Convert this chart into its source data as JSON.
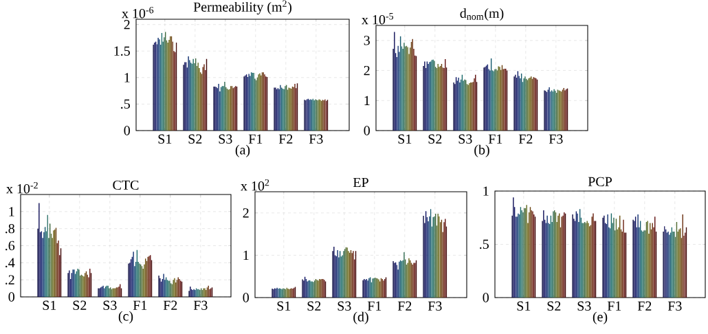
{
  "chart_data": [
    {
      "type": "bar",
      "title": "Permeability (m$^{2}$)",
      "xlabel": "(a)",
      "annotations": [
        "x 10$^{-6}$"
      ],
      "categories": [
        "S1",
        "S2",
        "S3",
        "F1",
        "F2",
        "F3"
      ],
      "ylim": [
        0,
        2.1
      ],
      "yticks": [
        0,
        {
          "value": 0.5,
          "label": ".5"
        },
        1,
        1.5,
        2
      ],
      "grid": true,
      "series": [
        {
          "color": "#0a0a40",
          "values": [
            1.62,
            1.24,
            0.83,
            1.02,
            0.81,
            0.58
          ]
        },
        {
          "color": "#0c0c55",
          "values": [
            1.66,
            1.29,
            0.83,
            1.04,
            0.81,
            0.57
          ]
        },
        {
          "color": "#0e1262",
          "values": [
            1.68,
            1.29,
            0.82,
            1.06,
            0.78,
            0.59
          ]
        },
        {
          "color": "#10206a",
          "values": [
            1.63,
            1.19,
            0.8,
            1.01,
            0.8,
            0.6
          ]
        },
        {
          "color": "#103070",
          "values": [
            1.75,
            1.4,
            0.88,
            1.07,
            0.78,
            0.58
          ]
        },
        {
          "color": "#104272",
          "values": [
            1.72,
            1.33,
            0.74,
            1.03,
            0.86,
            0.59
          ]
        },
        {
          "color": "#155a6e",
          "values": [
            1.62,
            1.28,
            0.82,
            1.1,
            0.81,
            0.58
          ]
        },
        {
          "color": "#1a6a6a",
          "values": [
            1.84,
            1.26,
            0.84,
            1.09,
            0.79,
            0.6
          ]
        },
        {
          "color": "#206a60",
          "values": [
            1.68,
            1.35,
            0.84,
            1.09,
            0.78,
            0.57
          ]
        },
        {
          "color": "#306a50",
          "values": [
            1.76,
            1.27,
            0.92,
            0.98,
            0.84,
            0.59
          ]
        },
        {
          "color": "#406a40",
          "values": [
            1.86,
            1.36,
            0.82,
            0.95,
            0.86,
            0.58
          ]
        },
        {
          "color": "#506a30",
          "values": [
            1.7,
            1.22,
            0.79,
            1.0,
            0.77,
            0.57
          ]
        },
        {
          "color": "#606a20",
          "values": [
            1.66,
            1.28,
            0.77,
            1.06,
            0.81,
            0.59
          ]
        },
        {
          "color": "#6a6010",
          "values": [
            1.71,
            1.18,
            0.78,
            1.08,
            0.8,
            0.58
          ]
        },
        {
          "color": "#6a5010",
          "values": [
            1.78,
            1.1,
            0.84,
            1.04,
            0.79,
            0.56
          ]
        },
        {
          "color": "#6a4010",
          "values": [
            1.78,
            1.07,
            0.84,
            1.1,
            0.83,
            0.58
          ]
        },
        {
          "color": "#6a3010",
          "values": [
            1.68,
            1.2,
            0.8,
            1.1,
            0.82,
            0.57
          ]
        },
        {
          "color": "#6a2010",
          "values": [
            1.5,
            1.25,
            0.82,
            1.06,
            0.88,
            0.59
          ]
        },
        {
          "color": "#601010",
          "values": [
            1.48,
            1.14,
            0.84,
            1.02,
            0.8,
            0.56
          ]
        },
        {
          "color": "#400808",
          "values": [
            1.66,
            1.35,
            0.83,
            1.01,
            0.89,
            0.58
          ]
        }
      ]
    },
    {
      "type": "bar",
      "title": "d$_{nom}$(m)",
      "xlabel": "(b)",
      "annotations": [
        "x 10$^{-5}$"
      ],
      "categories": [
        "S1",
        "S2",
        "S3",
        "F1",
        "F2",
        "F3"
      ],
      "ylim": [
        0,
        3.5
      ],
      "yticks": [
        0,
        1,
        2,
        3
      ],
      "grid": true,
      "series": [
        {
          "color": "#0a0a40",
          "values": [
            2.72,
            2.15,
            1.6,
            2.1,
            1.8,
            1.34
          ]
        },
        {
          "color": "#0c0c55",
          "values": [
            3.28,
            2.3,
            1.55,
            2.12,
            1.86,
            1.32
          ]
        },
        {
          "color": "#0e1262",
          "values": [
            2.58,
            2.08,
            1.78,
            2.16,
            1.76,
            1.28
          ]
        },
        {
          "color": "#10206a",
          "values": [
            2.45,
            2.3,
            1.66,
            2.2,
            1.98,
            1.36
          ]
        },
        {
          "color": "#103070",
          "values": [
            2.82,
            2.22,
            1.76,
            2.05,
            1.82,
            1.44
          ]
        },
        {
          "color": "#104272",
          "values": [
            2.62,
            2.28,
            1.6,
            2.0,
            1.74,
            1.3
          ]
        },
        {
          "color": "#155a6e",
          "values": [
            3.14,
            2.3,
            1.7,
            2.4,
            1.9,
            1.34
          ]
        },
        {
          "color": "#1a6a6a",
          "values": [
            2.8,
            2.35,
            1.86,
            2.0,
            1.62,
            1.3
          ]
        },
        {
          "color": "#206a60",
          "values": [
            2.72,
            2.36,
            1.66,
            1.98,
            1.74,
            1.38
          ]
        },
        {
          "color": "#306a50",
          "values": [
            2.92,
            2.32,
            1.7,
            2.04,
            1.8,
            1.32
          ]
        },
        {
          "color": "#406a40",
          "values": [
            2.8,
            2.12,
            1.68,
            2.05,
            1.72,
            1.26
          ]
        },
        {
          "color": "#506a30",
          "values": [
            2.82,
            2.08,
            1.55,
            2.0,
            1.68,
            1.36
          ]
        },
        {
          "color": "#606a20",
          "values": [
            2.78,
            2.22,
            1.52,
            2.14,
            1.74,
            1.34
          ]
        },
        {
          "color": "#6a6010",
          "values": [
            2.55,
            2.12,
            1.58,
            2.12,
            1.76,
            1.32
          ]
        },
        {
          "color": "#6a5010",
          "values": [
            2.76,
            2.15,
            1.6,
            2.02,
            1.8,
            1.3
          ]
        },
        {
          "color": "#6a4010",
          "values": [
            2.95,
            2.22,
            1.6,
            2.18,
            1.72,
            1.36
          ]
        },
        {
          "color": "#6a3010",
          "values": [
            3.05,
            2.1,
            1.62,
            2.05,
            1.78,
            1.42
          ]
        },
        {
          "color": "#6a2010",
          "values": [
            2.72,
            2.08,
            1.74,
            2.06,
            1.76,
            1.34
          ]
        },
        {
          "color": "#601010",
          "values": [
            2.5,
            2.38,
            1.86,
            2.06,
            1.74,
            1.38
          ]
        },
        {
          "color": "#400808",
          "values": [
            2.48,
            2.1,
            1.62,
            2.0,
            1.7,
            1.4
          ]
        }
      ]
    },
    {
      "type": "bar",
      "title": "CTC",
      "xlabel": "(c)",
      "annotations": [
        "x 10$^{-2}$"
      ],
      "categories": [
        "S1",
        "S2",
        "S3",
        "F1",
        "F2",
        "F3"
      ],
      "ylim": [
        0,
        1.2
      ],
      "yticks": [
        0,
        {
          "value": 0.2,
          "label": ".2"
        },
        {
          "value": 0.4,
          "label": ".4"
        },
        {
          "value": 0.6,
          "label": ".6"
        },
        {
          "value": 0.8,
          "label": ".8"
        },
        1
      ],
      "grid": true,
      "series": [
        {
          "color": "#0a0a40",
          "values": [
            0.8,
            0.28,
            0.1,
            0.39,
            0.25,
            0.07
          ]
        },
        {
          "color": "#0c0c55",
          "values": [
            1.1,
            0.31,
            0.1,
            0.4,
            0.22,
            0.12
          ]
        },
        {
          "color": "#0e1262",
          "values": [
            0.76,
            0.21,
            0.11,
            0.44,
            0.18,
            0.09
          ]
        },
        {
          "color": "#10206a",
          "values": [
            0.77,
            0.28,
            0.12,
            0.47,
            0.21,
            0.08
          ]
        },
        {
          "color": "#103070",
          "values": [
            0.69,
            0.32,
            0.13,
            0.53,
            0.27,
            0.09
          ]
        },
        {
          "color": "#104272",
          "values": [
            0.76,
            0.32,
            0.1,
            0.36,
            0.2,
            0.08
          ]
        },
        {
          "color": "#155a6e",
          "values": [
            0.82,
            0.27,
            0.12,
            0.41,
            0.23,
            0.1
          ]
        },
        {
          "color": "#1a6a6a",
          "values": [
            0.77,
            0.3,
            0.13,
            0.55,
            0.2,
            0.09
          ]
        },
        {
          "color": "#206a60",
          "values": [
            0.96,
            0.33,
            0.13,
            0.41,
            0.19,
            0.09
          ]
        },
        {
          "color": "#306a50",
          "values": [
            0.69,
            0.32,
            0.1,
            0.39,
            0.19,
            0.08
          ]
        },
        {
          "color": "#406a40",
          "values": [
            0.86,
            0.25,
            0.11,
            0.38,
            0.16,
            0.1
          ]
        },
        {
          "color": "#506a30",
          "values": [
            0.74,
            0.26,
            0.09,
            0.36,
            0.15,
            0.08
          ]
        },
        {
          "color": "#606a20",
          "values": [
            0.69,
            0.25,
            0.1,
            0.33,
            0.2,
            0.1
          ]
        },
        {
          "color": "#6a6010",
          "values": [
            0.78,
            0.24,
            0.1,
            0.38,
            0.22,
            0.1
          ]
        },
        {
          "color": "#6a5010",
          "values": [
            0.79,
            0.28,
            0.1,
            0.45,
            0.17,
            0.08
          ]
        },
        {
          "color": "#6a4010",
          "values": [
            0.81,
            0.3,
            0.11,
            0.42,
            0.2,
            0.11
          ]
        },
        {
          "color": "#6a3010",
          "values": [
            0.63,
            0.26,
            0.11,
            0.47,
            0.23,
            0.13
          ]
        },
        {
          "color": "#6a2010",
          "values": [
            0.66,
            0.23,
            0.12,
            0.48,
            0.21,
            0.09
          ]
        },
        {
          "color": "#601010",
          "values": [
            0.49,
            0.33,
            0.15,
            0.49,
            0.19,
            0.1
          ]
        },
        {
          "color": "#400808",
          "values": [
            0.57,
            0.28,
            0.1,
            0.43,
            0.18,
            0.11
          ]
        }
      ]
    },
    {
      "type": "bar",
      "title": "EP",
      "xlabel": "(d)",
      "annotations": [
        "x 10$^{2}$"
      ],
      "categories": [
        "S1",
        "S2",
        "S3",
        "F1",
        "F2",
        "F3"
      ],
      "ylim": [
        0,
        2.5
      ],
      "yticks": [
        0,
        1,
        2
      ],
      "grid": true,
      "series": [
        {
          "color": "#0a0a40",
          "values": [
            0.21,
            0.43,
            1.1,
            0.41,
            0.86,
            1.93
          ]
        },
        {
          "color": "#0c0c55",
          "values": [
            0.2,
            0.4,
            1.2,
            0.44,
            0.82,
            1.76
          ]
        },
        {
          "color": "#0e1262",
          "values": [
            0.22,
            0.49,
            1.0,
            0.42,
            0.83,
            2.04
          ]
        },
        {
          "color": "#10206a",
          "values": [
            0.21,
            0.44,
            0.98,
            0.44,
            0.77,
            1.9
          ]
        },
        {
          "color": "#103070",
          "values": [
            0.23,
            0.38,
            1.12,
            0.4,
            0.66,
            1.8
          ]
        },
        {
          "color": "#104272",
          "values": [
            0.21,
            0.4,
            0.95,
            0.46,
            0.85,
            1.92
          ]
        },
        {
          "color": "#155a6e",
          "values": [
            0.22,
            0.41,
            1.1,
            0.48,
            0.88,
            2.09
          ]
        },
        {
          "color": "#1a6a6a",
          "values": [
            0.21,
            0.38,
            0.97,
            0.36,
            0.86,
            1.68
          ]
        },
        {
          "color": "#206a60",
          "values": [
            0.2,
            0.38,
            1.0,
            0.45,
            0.88,
            1.9
          ]
        },
        {
          "color": "#306a50",
          "values": [
            0.22,
            0.37,
            1.1,
            0.46,
            1.07,
            1.92
          ]
        },
        {
          "color": "#406a40",
          "values": [
            0.21,
            0.4,
            1.15,
            0.47,
            0.9,
            1.98
          ]
        },
        {
          "color": "#506a30",
          "values": [
            0.2,
            0.44,
            1.19,
            0.46,
            0.78,
            1.7
          ]
        },
        {
          "color": "#606a20",
          "values": [
            0.23,
            0.42,
            1.18,
            0.45,
            0.82,
            1.98
          ]
        },
        {
          "color": "#6a6010",
          "values": [
            0.21,
            0.4,
            1.1,
            0.43,
            0.93,
            1.92
          ]
        },
        {
          "color": "#6a5010",
          "values": [
            0.2,
            0.44,
            1.06,
            0.38,
            0.88,
            1.78
          ]
        },
        {
          "color": "#6a4010",
          "values": [
            0.21,
            0.43,
            1.12,
            0.46,
            0.82,
            1.84
          ]
        },
        {
          "color": "#6a3010",
          "values": [
            0.22,
            0.44,
            1.05,
            0.44,
            0.78,
            1.55
          ]
        },
        {
          "color": "#6a2010",
          "values": [
            0.21,
            0.44,
            1.1,
            0.4,
            0.82,
            1.78
          ]
        },
        {
          "color": "#601010",
          "values": [
            0.23,
            0.42,
            0.9,
            0.44,
            0.82,
            1.86
          ]
        },
        {
          "color": "#400808",
          "values": [
            0.25,
            0.38,
            1.1,
            0.48,
            0.88,
            1.68
          ]
        }
      ]
    },
    {
      "type": "bar",
      "title": "PCP",
      "xlabel": "(e)",
      "categories": [
        "S1",
        "S2",
        "S3",
        "F1",
        "F2",
        "F3"
      ],
      "ylim": [
        0,
        1
      ],
      "yticks": [
        0,
        {
          "value": 0.5,
          "label": ".5"
        },
        1
      ],
      "grid": true,
      "series": [
        {
          "color": "#0a0a40",
          "values": [
            0.77,
            0.72,
            0.78,
            0.75,
            0.73,
            0.62
          ]
        },
        {
          "color": "#0c0c55",
          "values": [
            0.94,
            0.82,
            0.74,
            0.77,
            0.72,
            0.67
          ]
        },
        {
          "color": "#0e1262",
          "values": [
            0.85,
            0.73,
            0.72,
            0.7,
            0.76,
            0.64
          ]
        },
        {
          "color": "#10206a",
          "values": [
            0.76,
            0.7,
            0.81,
            0.69,
            0.66,
            0.61
          ]
        },
        {
          "color": "#103070",
          "values": [
            0.76,
            0.77,
            0.79,
            0.78,
            0.78,
            0.62
          ]
        },
        {
          "color": "#104272",
          "values": [
            0.79,
            0.7,
            0.71,
            0.66,
            0.66,
            0.59
          ]
        },
        {
          "color": "#155a6e",
          "values": [
            0.78,
            0.69,
            0.83,
            0.65,
            0.72,
            0.61
          ]
        },
        {
          "color": "#1a6a6a",
          "values": [
            0.85,
            0.77,
            0.75,
            0.79,
            0.63,
            0.66
          ]
        },
        {
          "color": "#206a60",
          "values": [
            0.82,
            0.71,
            0.7,
            0.7,
            0.62,
            0.62
          ]
        },
        {
          "color": "#306a50",
          "values": [
            0.8,
            0.81,
            0.7,
            0.75,
            0.63,
            0.62
          ]
        },
        {
          "color": "#406a40",
          "values": [
            0.84,
            0.82,
            0.71,
            0.63,
            0.63,
            0.57
          ]
        },
        {
          "color": "#506a30",
          "values": [
            0.84,
            0.8,
            0.7,
            0.74,
            0.71,
            0.71
          ]
        },
        {
          "color": "#606a20",
          "values": [
            0.87,
            0.71,
            0.72,
            0.64,
            0.72,
            0.62
          ]
        },
        {
          "color": "#6a6010",
          "values": [
            0.7,
            0.77,
            0.7,
            0.66,
            0.6,
            0.64
          ]
        },
        {
          "color": "#6a5010",
          "values": [
            0.8,
            0.79,
            0.67,
            0.77,
            0.7,
            0.65
          ]
        },
        {
          "color": "#6a4010",
          "values": [
            0.85,
            0.66,
            0.68,
            0.64,
            0.64,
            0.56
          ]
        },
        {
          "color": "#6a3010",
          "values": [
            0.82,
            0.76,
            0.76,
            0.62,
            0.7,
            0.78
          ]
        },
        {
          "color": "#6a2010",
          "values": [
            0.81,
            0.77,
            0.79,
            0.73,
            0.66,
            0.58
          ]
        },
        {
          "color": "#601010",
          "values": [
            0.78,
            0.8,
            0.72,
            0.61,
            0.76,
            0.61
          ]
        },
        {
          "color": "#400808",
          "values": [
            0.76,
            0.79,
            0.72,
            0.61,
            0.62,
            0.66
          ]
        }
      ]
    }
  ]
}
